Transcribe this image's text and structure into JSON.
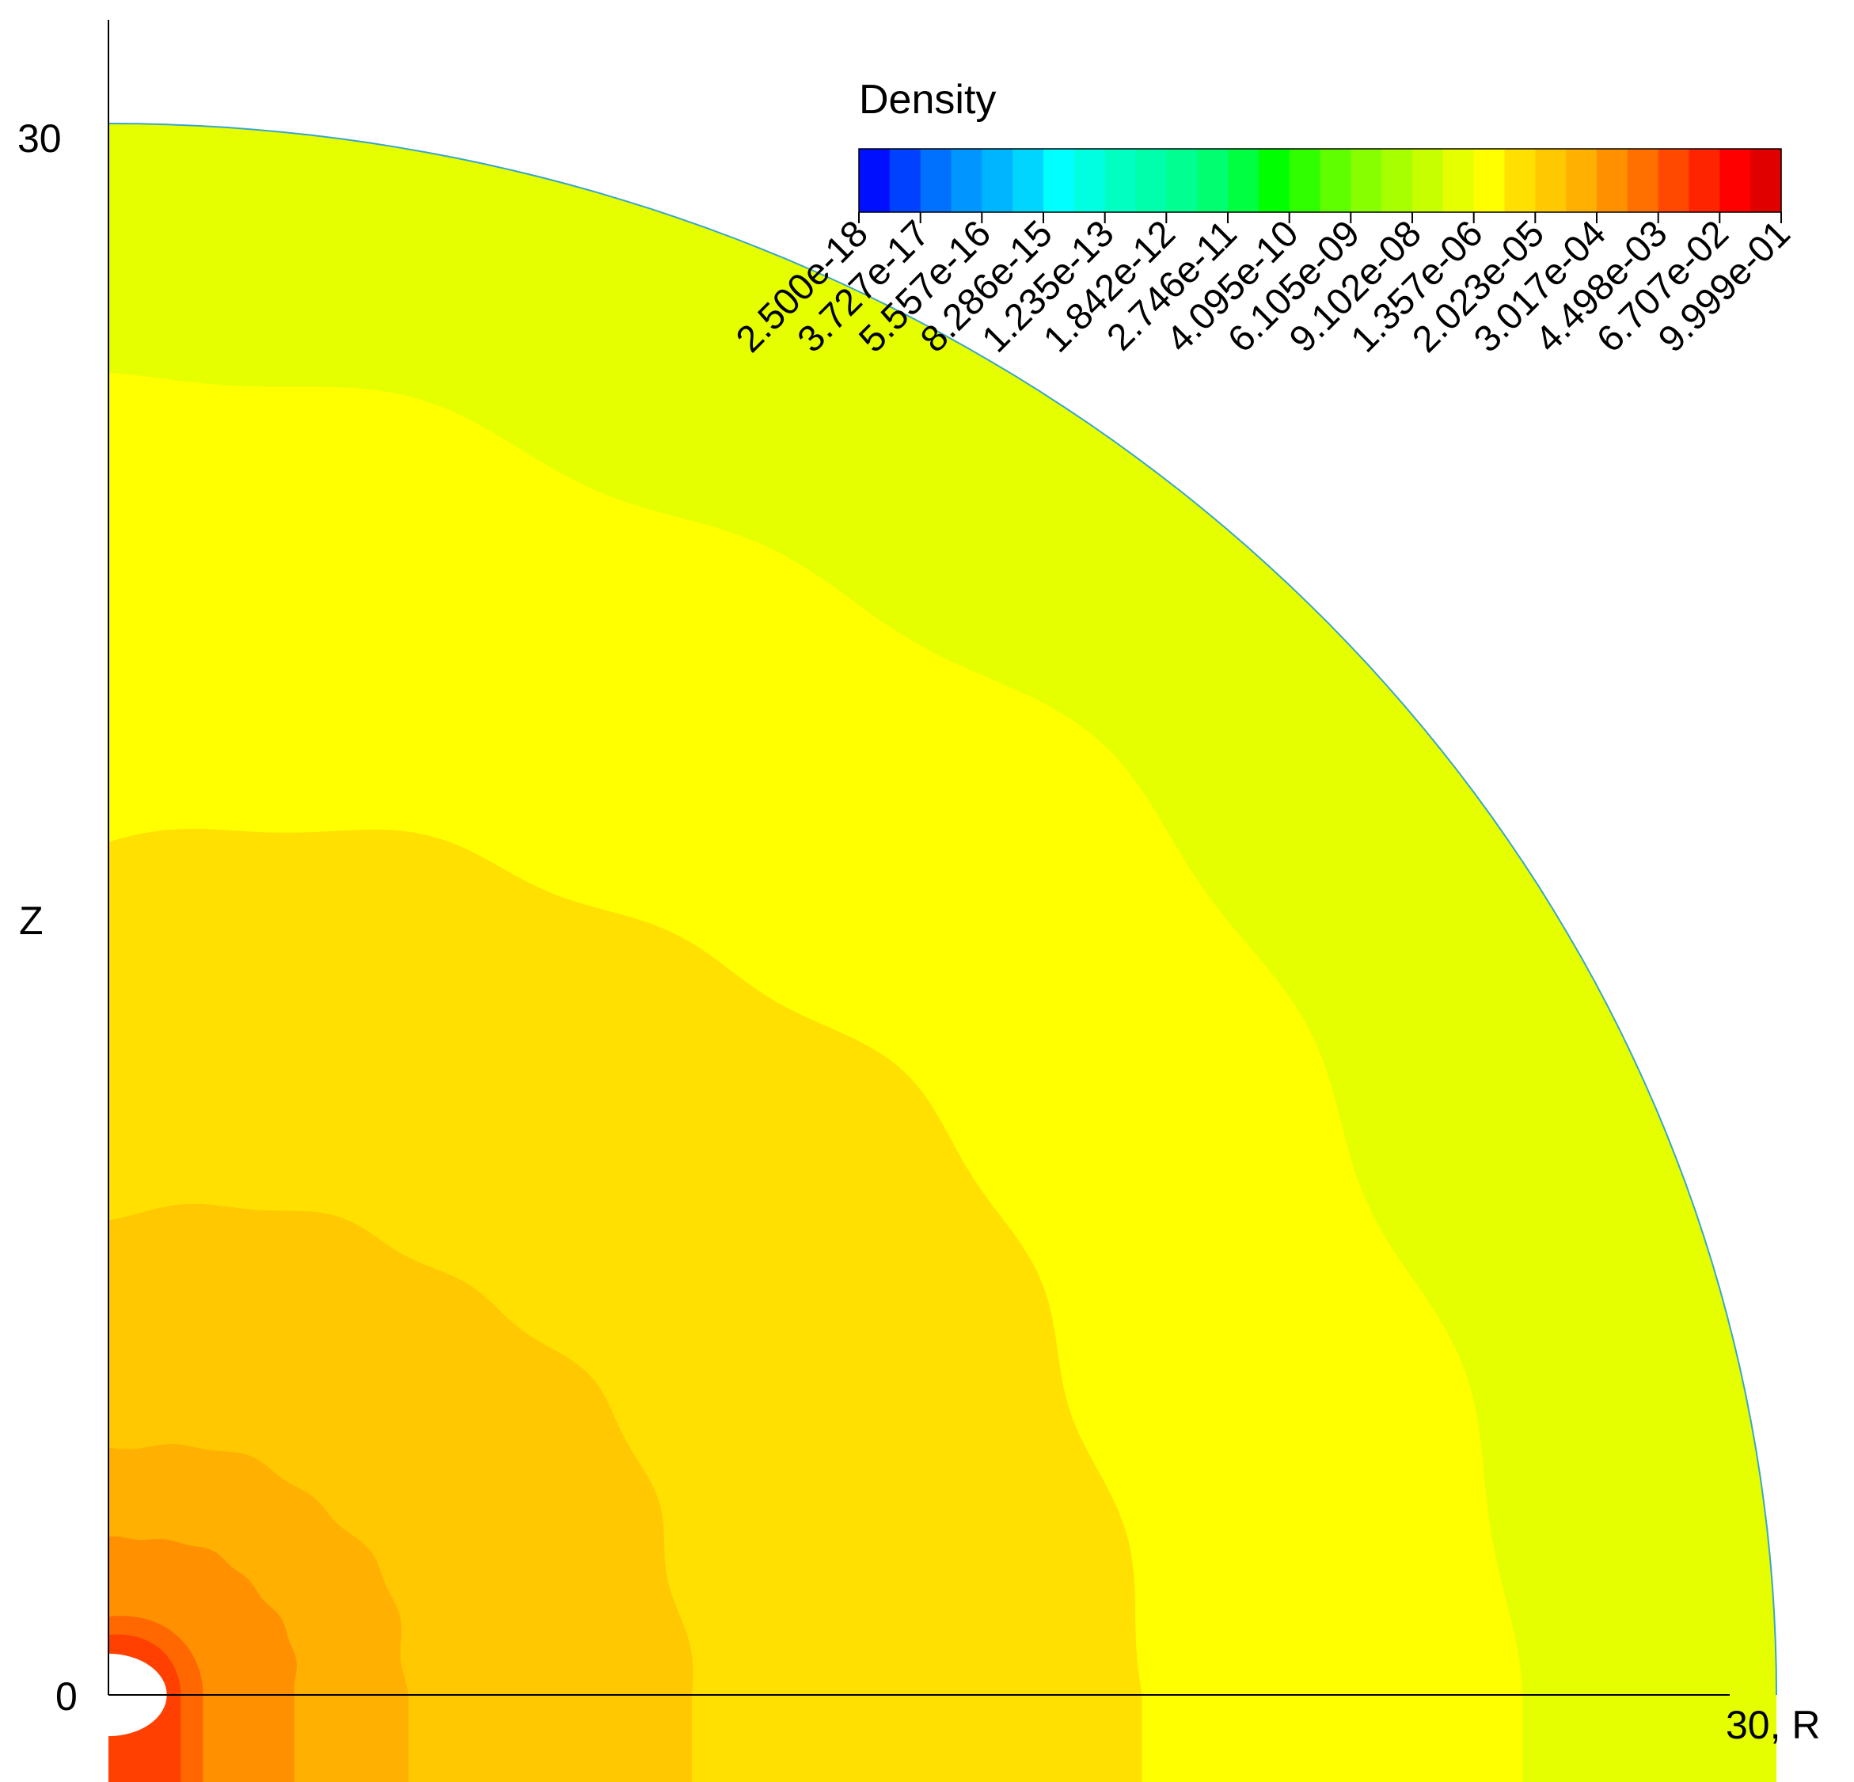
{
  "chart_data": {
    "type": "contour",
    "colorbar": {
      "title": "Density",
      "labels": [
        "2.500e-18",
        "3.727e-17",
        "5.557e-16",
        "8.286e-15",
        "1.235e-13",
        "1.842e-12",
        "2.746e-11",
        "4.095e-10",
        "6.105e-09",
        "9.102e-08",
        "1.357e-06",
        "2.023e-05",
        "3.017e-04",
        "4.498e-03",
        "6.707e-02",
        "9.999e-01"
      ],
      "colors": [
        "#0010ff",
        "#0040ff",
        "#0070ff",
        "#0095ff",
        "#00b5ff",
        "#00d5ff",
        "#00ffff",
        "#00ffe0",
        "#00ffc0",
        "#00ffaa",
        "#00ff90",
        "#00ff70",
        "#00ff40",
        "#00ff00",
        "#30ff00",
        "#60ff00",
        "#88ff00",
        "#a8ff00",
        "#c8ff00",
        "#e6ff00",
        "#ffff00",
        "#ffe000",
        "#ffc800",
        "#ffb000",
        "#ff9000",
        "#ff7000",
        "#ff4800",
        "#ff2400",
        "#ff0000",
        "#e00000"
      ]
    },
    "axes": {
      "x_tick_label": "30, R",
      "y_tick_labels": [
        "0",
        "30"
      ],
      "y_label": "Z",
      "x_range": [
        0,
        30
      ],
      "y_range": [
        0,
        30
      ]
    },
    "regions": [
      {
        "level_color": "#e6ff00",
        "outer_radius": 30
      },
      {
        "level_color": "#ffff00",
        "outer_radius": 25
      },
      {
        "level_color": "#ffe000",
        "outer_radius": 18.5
      },
      {
        "level_color": "#ffc800",
        "outer_radius": 10.5
      },
      {
        "level_color": "#ffb000",
        "outer_radius": 5.4
      },
      {
        "level_color": "#ff9000",
        "outer_radius": 3.4
      },
      {
        "level_color": "#ff6800",
        "outer_radius": 1.7
      },
      {
        "level_color": "#ff4000",
        "outer_radius": 1.3
      }
    ],
    "inner_hole_radius": 1.05
  }
}
